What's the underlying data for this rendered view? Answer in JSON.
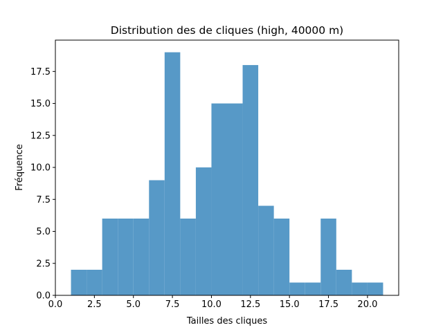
{
  "chart_data": {
    "type": "bar",
    "title": "Distribution des de cliques (high, 40000 m)",
    "xlabel": "Tailles des cliques",
    "ylabel": "Fréquence",
    "xlim": [
      0.0,
      22.0
    ],
    "ylim": [
      0.0,
      19.95
    ],
    "xticks": [
      "0.0",
      "2.5",
      "5.0",
      "7.5",
      "10.0",
      "12.5",
      "15.0",
      "17.5",
      "20.0"
    ],
    "yticks": [
      "0.0",
      "2.5",
      "5.0",
      "7.5",
      "10.0",
      "12.5",
      "15.0",
      "17.5"
    ],
    "bin_edges": [
      1,
      2,
      3,
      4,
      5,
      6,
      7,
      8,
      9,
      10,
      11,
      12,
      13,
      14,
      15,
      16,
      17,
      18,
      19,
      20,
      21
    ],
    "values": [
      2,
      2,
      6,
      6,
      6,
      9,
      19,
      6,
      10,
      15,
      15,
      18,
      7,
      6,
      1,
      1,
      6,
      2,
      1,
      1
    ],
    "bar_color": "#5799c7",
    "grid": false
  }
}
